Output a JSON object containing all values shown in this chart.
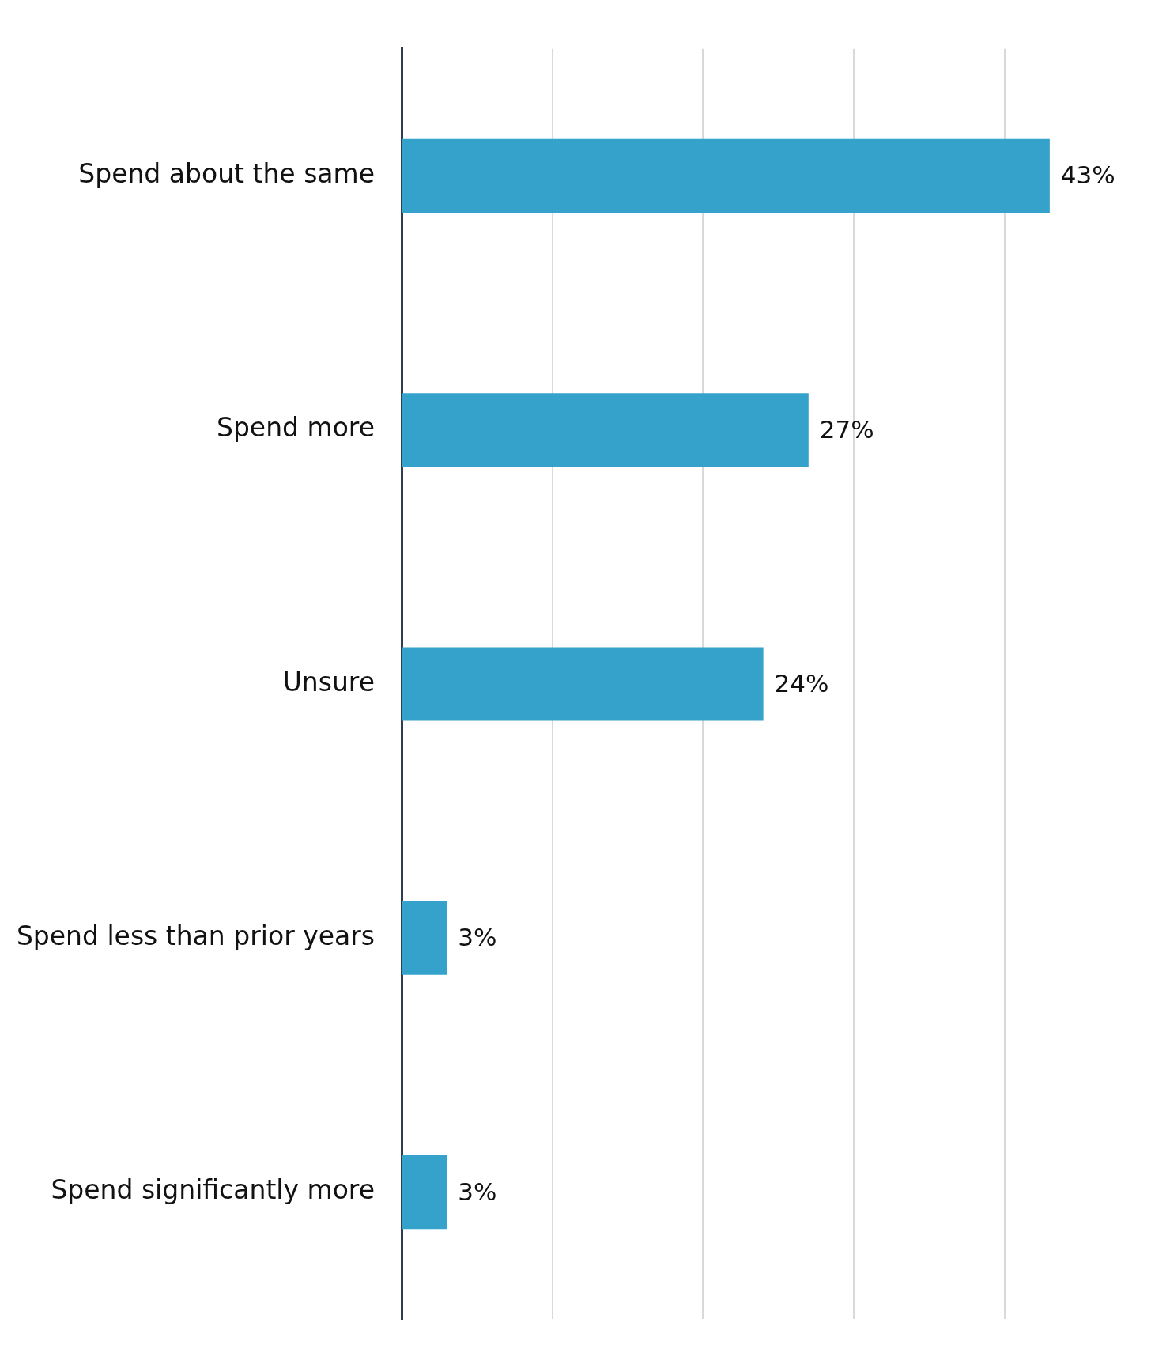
{
  "chart_data": {
    "type": "bar",
    "orientation": "horizontal",
    "categories": [
      "Spend about the same",
      "Spend more",
      "Unsure",
      "Spend less than prior years",
      "Spend significantly more"
    ],
    "values": [
      43,
      27,
      24,
      3,
      3
    ],
    "color": "#35a2cb",
    "value_labels": [
      "43%",
      "27%",
      "24%",
      "3%",
      "3%"
    ],
    "xticks": [
      {
        "value": 0,
        "label": null
      },
      {
        "value": 10,
        "label": null
      },
      {
        "value": 20,
        "label": null
      },
      {
        "value": 30,
        "label": null
      },
      {
        "value": 40,
        "label": null
      }
    ],
    "grid": "x",
    "tick_labels": "y",
    "legend": false
  }
}
